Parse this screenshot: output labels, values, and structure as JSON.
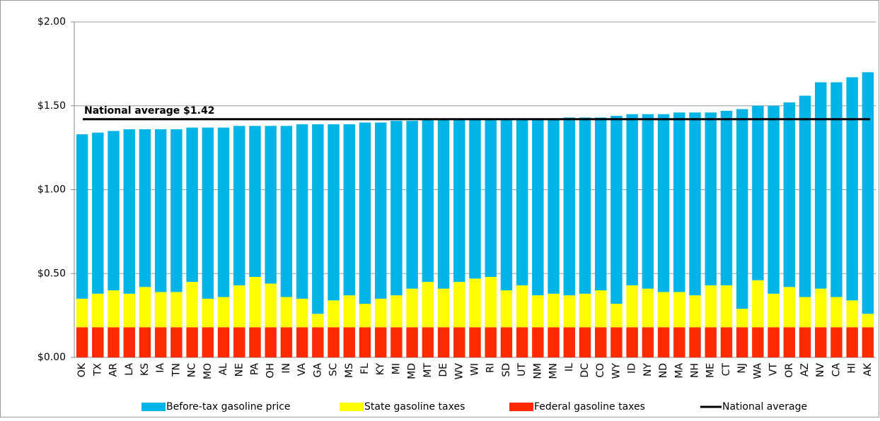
{
  "chart_data": {
    "type": "stacked_bar",
    "categories": [
      "OK",
      "TX",
      "AR",
      "LA",
      "KS",
      "IA",
      "TN",
      "NC",
      "MO",
      "AL",
      "NE",
      "PA",
      "OH",
      "IN",
      "VA",
      "GA",
      "SC",
      "MS",
      "FL",
      "KY",
      "MI",
      "MD",
      "MT",
      "DE",
      "WV",
      "WI",
      "RI",
      "SD",
      "UT",
      "NM",
      "MN",
      "IL",
      "DC",
      "CO",
      "WY",
      "ID",
      "NY",
      "ND",
      "MA",
      "NH",
      "ME",
      "CT",
      "NJ",
      "WA",
      "VT",
      "OR",
      "AZ",
      "NV",
      "CA",
      "HI",
      "AK"
    ],
    "series": [
      {
        "name": "Before-tax gasoline price",
        "color": "#00b4e8",
        "values": [
          0.98,
          0.96,
          0.95,
          0.98,
          0.94,
          0.97,
          0.97,
          0.92,
          1.02,
          1.01,
          0.95,
          0.9,
          0.94,
          1.02,
          1.04,
          1.13,
          1.05,
          1.02,
          1.08,
          1.05,
          1.04,
          1.0,
          0.97,
          1.01,
          0.97,
          0.95,
          0.94,
          1.02,
          0.99,
          1.05,
          1.04,
          1.06,
          1.05,
          1.03,
          1.12,
          1.02,
          1.04,
          1.06,
          1.07,
          1.09,
          1.03,
          1.04,
          1.19,
          1.04,
          1.12,
          1.1,
          1.2,
          1.23,
          1.28,
          1.33,
          1.44
        ]
      },
      {
        "name": "State gasoline taxes",
        "color": "#ffff00",
        "values": [
          0.17,
          0.2,
          0.22,
          0.2,
          0.24,
          0.21,
          0.21,
          0.27,
          0.17,
          0.18,
          0.25,
          0.3,
          0.26,
          0.18,
          0.17,
          0.08,
          0.16,
          0.19,
          0.14,
          0.17,
          0.19,
          0.23,
          0.27,
          0.23,
          0.27,
          0.29,
          0.3,
          0.22,
          0.25,
          0.19,
          0.2,
          0.19,
          0.2,
          0.22,
          0.14,
          0.25,
          0.23,
          0.21,
          0.21,
          0.19,
          0.25,
          0.25,
          0.11,
          0.28,
          0.2,
          0.24,
          0.18,
          0.23,
          0.18,
          0.16,
          0.08
        ]
      },
      {
        "name": "Federal gasoline taxes",
        "color": "#ff2a00",
        "values": [
          0.18,
          0.18,
          0.18,
          0.18,
          0.18,
          0.18,
          0.18,
          0.18,
          0.18,
          0.18,
          0.18,
          0.18,
          0.18,
          0.18,
          0.18,
          0.18,
          0.18,
          0.18,
          0.18,
          0.18,
          0.18,
          0.18,
          0.18,
          0.18,
          0.18,
          0.18,
          0.18,
          0.18,
          0.18,
          0.18,
          0.18,
          0.18,
          0.18,
          0.18,
          0.18,
          0.18,
          0.18,
          0.18,
          0.18,
          0.18,
          0.18,
          0.18,
          0.18,
          0.18,
          0.18,
          0.18,
          0.18,
          0.18,
          0.18,
          0.18,
          0.18
        ]
      }
    ],
    "reference_line": {
      "name": "National average",
      "label": "National average $1.42",
      "value": 1.42,
      "color": "#000000"
    },
    "ylim": [
      0,
      2
    ],
    "yticks": [
      {
        "value": 0,
        "label": "$0.00"
      },
      {
        "value": 0.5,
        "label": "$0.50"
      },
      {
        "value": 1,
        "label": "$1.00"
      },
      {
        "value": 1.5,
        "label": "$1.50"
      },
      {
        "value": 2,
        "label": "$2.00"
      }
    ],
    "grid": true,
    "legend": "bottom"
  }
}
